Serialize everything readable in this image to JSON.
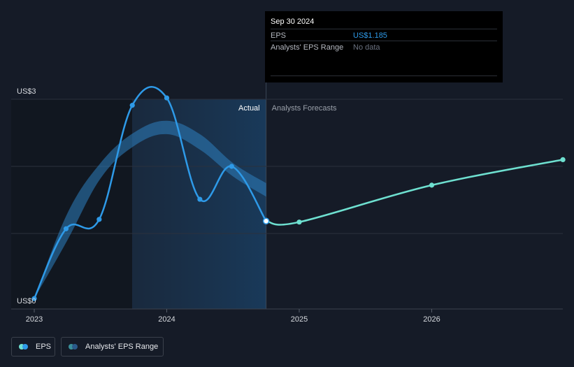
{
  "chart_data": {
    "type": "line",
    "x_axis_ticks": [
      "2023",
      "2024",
      "2025",
      "2026"
    ],
    "y_axis_labels": [
      "US$3",
      "US$0"
    ],
    "ylim": [
      0,
      3
    ],
    "sections": {
      "actual_label": "Actual",
      "forecast_label": "Analysts Forecasts"
    },
    "series": [
      {
        "name": "EPS",
        "kind": "actual",
        "color": "#2e9ae8",
        "points": [
          {
            "x": 2023.0,
            "y": 0.03
          },
          {
            "x": 2023.24,
            "y": 1.07
          },
          {
            "x": 2023.49,
            "y": 1.21
          },
          {
            "x": 2023.74,
            "y": 2.91
          },
          {
            "x": 2024.0,
            "y": 3.02
          },
          {
            "x": 2024.25,
            "y": 1.51
          },
          {
            "x": 2024.49,
            "y": 2.0
          },
          {
            "x": 2024.75,
            "y": 1.185
          }
        ]
      },
      {
        "name": "EPS",
        "kind": "forecast",
        "color": "#6ee0d0",
        "points": [
          {
            "x": 2024.75,
            "y": 1.185
          },
          {
            "x": 2025.0,
            "y": 1.17
          },
          {
            "x": 2026.0,
            "y": 1.72
          },
          {
            "x": 2026.99,
            "y": 2.1
          }
        ]
      },
      {
        "name": "Analysts' EPS Range",
        "kind": "range",
        "color": "#2e7fbf",
        "x": [
          2023.0,
          2023.25,
          2023.5,
          2023.75,
          2024.0,
          2024.25,
          2024.5,
          2024.75
        ],
        "upper": [
          0.03,
          1.3,
          2.05,
          2.5,
          2.68,
          2.48,
          2.05,
          1.75
        ],
        "lower": [
          0.03,
          0.9,
          1.82,
          2.3,
          2.48,
          2.25,
          1.85,
          1.55
        ]
      }
    ],
    "legend": [
      {
        "label": "EPS",
        "colors": [
          "#6ee0d0",
          "#2e9ae8"
        ]
      },
      {
        "label": "Analysts' EPS Range",
        "colors": [
          "#3a8f99",
          "#2a5a8a"
        ]
      }
    ]
  },
  "tooltip": {
    "date": "Sep 30 2024",
    "rows": [
      {
        "label": "EPS",
        "value": "US$1.185",
        "value_color": "#2e9ae8"
      },
      {
        "label": "Analysts' EPS Range",
        "value": "No data",
        "value_color": "#6b7280"
      }
    ]
  }
}
